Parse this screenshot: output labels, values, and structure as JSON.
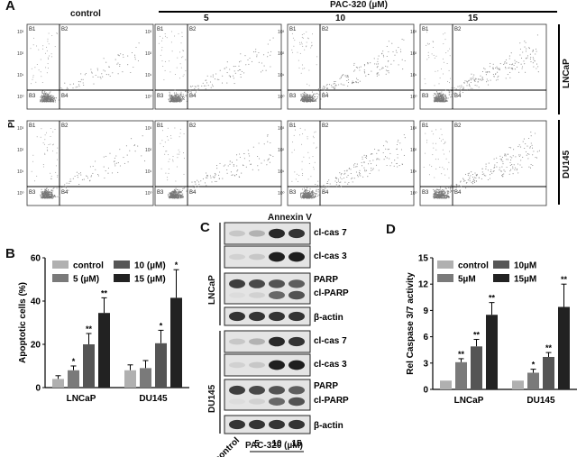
{
  "panels": {
    "a": "A",
    "b": "B",
    "c": "C",
    "d": "D"
  },
  "flow": {
    "col_labels": [
      "control",
      "5",
      "10",
      "15"
    ],
    "treatment_label": "PAC-320  (µM)",
    "row_labels": [
      "LNCaP",
      "DU145"
    ],
    "x_axis_label": "Annexin V",
    "y_axis_label": "PI",
    "quadrants": [
      "B1",
      "B2",
      "B3",
      "B4"
    ],
    "scatter_density": [
      [
        0.35,
        0.55,
        0.75,
        0.95
      ],
      [
        0.35,
        0.55,
        0.75,
        0.95
      ]
    ]
  },
  "western": {
    "lncap_label": "LNCaP",
    "du145_label": "DU145",
    "lncap_bands": [
      "cl-cas 7",
      "cl-cas 3",
      "PARP",
      "cl-PARP",
      "β-actin"
    ],
    "du145_bands": [
      "cl-cas 7",
      "cl-cas 3",
      "PARP",
      "cl-PARP",
      "β-actin"
    ],
    "lanes": [
      "control",
      "5",
      "10",
      "15"
    ],
    "x_label": "PAC-320 (µM)"
  },
  "chart_data": [
    {
      "type": "bar",
      "panel": "B",
      "ylabel": "Apoptotic cells (%)",
      "ylim": [
        0,
        60
      ],
      "yticks": [
        "0",
        "20",
        "40",
        "60"
      ],
      "categories": [
        "LNCaP",
        "DU145"
      ],
      "legend": [
        "control",
        "5 (µM)",
        "10 (µM)",
        "15 (µM)"
      ],
      "colors": [
        "#b0b0b0",
        "#7a7a7a",
        "#555555",
        "#222222"
      ],
      "series": [
        {
          "name": "control",
          "values": [
            4,
            8
          ],
          "errors": [
            1.5,
            2.5
          ],
          "sig": [
            "",
            ""
          ]
        },
        {
          "name": "5 (µM)",
          "values": [
            8,
            9
          ],
          "errors": [
            2,
            3.5
          ],
          "sig": [
            "*",
            ""
          ]
        },
        {
          "name": "10 (µM)",
          "values": [
            20,
            20.5
          ],
          "errors": [
            5,
            6
          ],
          "sig": [
            "**",
            "*"
          ]
        },
        {
          "name": "15 (µM)",
          "values": [
            34.5,
            41.5
          ],
          "errors": [
            7,
            13
          ],
          "sig": [
            "**",
            "*"
          ]
        }
      ]
    },
    {
      "type": "bar",
      "panel": "D",
      "ylabel": "Rel Caspase 3/7 activity",
      "ylim": [
        0,
        15
      ],
      "yticks": [
        "0",
        "3",
        "6",
        "9",
        "12",
        "15"
      ],
      "categories": [
        "LNCaP",
        "DU145"
      ],
      "legend": [
        "control",
        "5µM",
        "10µM",
        "15µM"
      ],
      "colors": [
        "#b0b0b0",
        "#7a7a7a",
        "#555555",
        "#222222"
      ],
      "series": [
        {
          "name": "control",
          "values": [
            1,
            1
          ],
          "errors": [
            0,
            0
          ],
          "sig": [
            "",
            ""
          ]
        },
        {
          "name": "5µM",
          "values": [
            3.1,
            1.9
          ],
          "errors": [
            0.4,
            0.4
          ],
          "sig": [
            "**",
            "*"
          ]
        },
        {
          "name": "10µM",
          "values": [
            4.9,
            3.7
          ],
          "errors": [
            0.8,
            0.5
          ],
          "sig": [
            "**",
            "**"
          ]
        },
        {
          "name": "15µM",
          "values": [
            8.5,
            9.4
          ],
          "errors": [
            1.4,
            2.6
          ],
          "sig": [
            "**",
            "**"
          ]
        }
      ]
    }
  ]
}
